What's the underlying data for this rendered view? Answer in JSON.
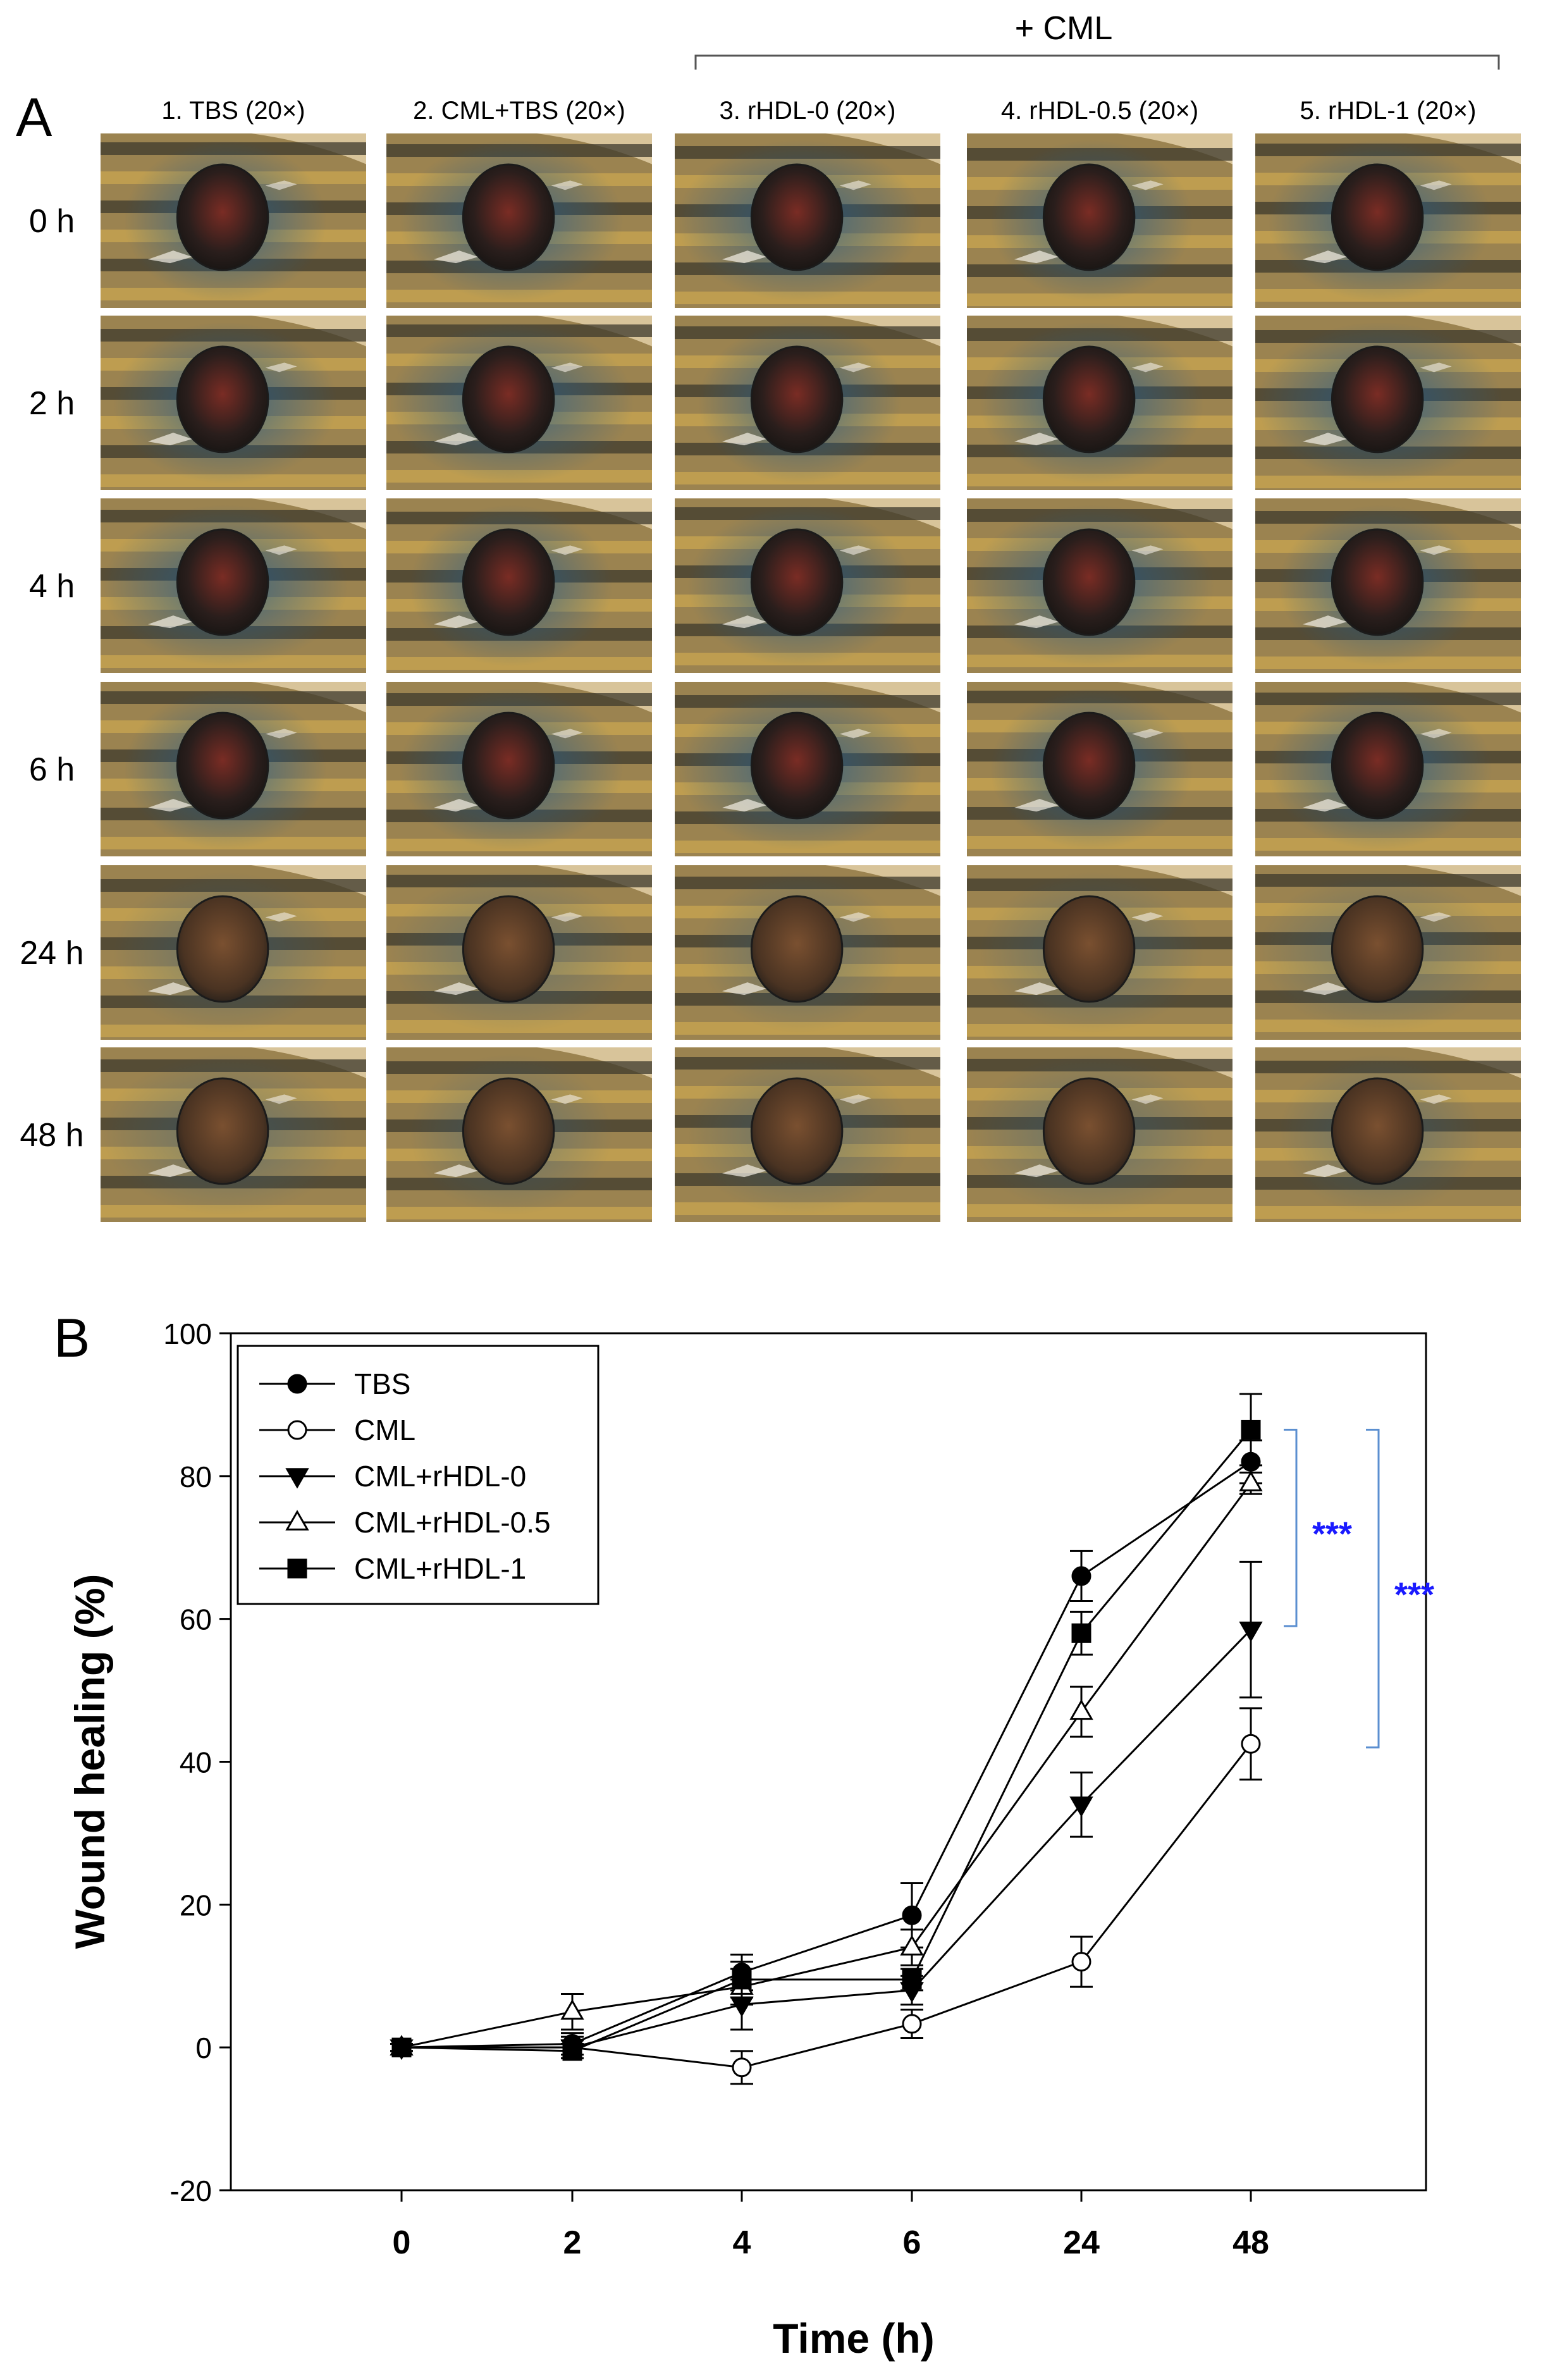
{
  "panelA": {
    "label": "A",
    "bracket_label": "+ CML",
    "columns": [
      "1. TBS (20×)",
      "2. CML+TBS (20×)",
      "3. rHDL-0 (20×)",
      "4. rHDL-0.5 (20×)",
      "5. rHDL-1 (20×)"
    ],
    "rows": [
      "0 h",
      "2 h",
      "4 h",
      "6 h",
      "24 h",
      "48 h"
    ],
    "photo_colors": {
      "fish_body": "#9b8350",
      "stripe_dark": "#3e3a2c",
      "stripe_gold": "#c9a550",
      "stain_blue": "#1f5a8c",
      "wound_dark": "#2a1e1c",
      "wound_red": "#7a2c24",
      "wound_brown": "#7a5030",
      "backdrop": "#d8c49a"
    }
  },
  "panelB": {
    "label": "B"
  },
  "chart_data": {
    "type": "line",
    "title": "",
    "xlabel": "Time (h)",
    "ylabel": "Wound healing (%)",
    "categories": [
      "0",
      "2",
      "4",
      "6",
      "24",
      "48"
    ],
    "ylim": [
      -20,
      100
    ],
    "yticks": [
      -20,
      0,
      20,
      40,
      60,
      80,
      100
    ],
    "grid": false,
    "legend_position": "top-left",
    "series": [
      {
        "name": "TBS",
        "marker": "circle-filled",
        "values": [
          0,
          0.5,
          10.5,
          18.5,
          66,
          82
        ],
        "errors": [
          0.5,
          1.5,
          2.5,
          4.5,
          3.5,
          3
        ]
      },
      {
        "name": "CML",
        "marker": "circle-open",
        "values": [
          0,
          0,
          -2.8,
          3.3,
          12,
          42.5
        ],
        "errors": [
          0.5,
          1.5,
          2.3,
          2,
          3.5,
          5
        ]
      },
      {
        "name": "CML+rHDL-0",
        "marker": "triangle-down-filled",
        "values": [
          0,
          0,
          6,
          8,
          34,
          58.5
        ],
        "errors": [
          0.5,
          1,
          3.5,
          2,
          4.5,
          9.5
        ]
      },
      {
        "name": "CML+rHDL-0.5",
        "marker": "triangle-up-open",
        "values": [
          0,
          5,
          8.5,
          14,
          47,
          79
        ],
        "errors": [
          0.5,
          2.5,
          2.5,
          2.5,
          3.5,
          1.5
        ]
      },
      {
        "name": "CML+rHDL-1",
        "marker": "square-filled",
        "values": [
          0,
          -0.5,
          9.5,
          9.5,
          58,
          86.5
        ],
        "errors": [
          0.5,
          1,
          2.5,
          1.5,
          3,
          5
        ]
      }
    ],
    "annotations": [
      {
        "text": "***",
        "color": "#1a1aff",
        "bracket_from": 86.5,
        "bracket_to": 59
      },
      {
        "text": "***",
        "color": "#1a1aff",
        "bracket_from": 86.5,
        "bracket_to": 42
      }
    ],
    "bracket_color": "#5b8fd0"
  }
}
